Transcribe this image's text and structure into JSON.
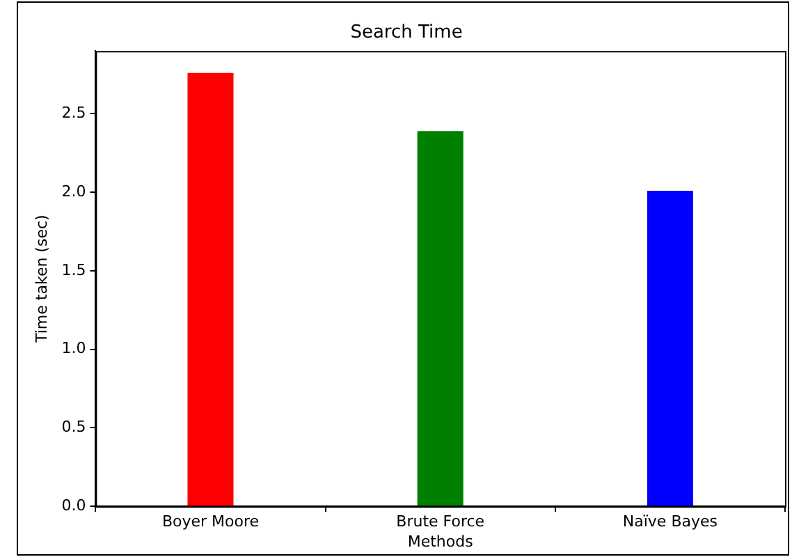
{
  "chart_data": {
    "type": "bar",
    "title": "Search Time",
    "xlabel": "Methods",
    "ylabel": "Time taken (sec)",
    "categories": [
      "Boyer Moore",
      "Brute Force",
      "Naïve Bayes"
    ],
    "values": [
      2.76,
      2.39,
      2.01
    ],
    "colors": [
      "#ff0000",
      "#008000",
      "#0000ff"
    ],
    "ylim": [
      0,
      2.9
    ],
    "yticks": [
      {
        "value": 0,
        "label": "0.0"
      },
      {
        "value": 0.5,
        "label": "0.5"
      },
      {
        "value": 1,
        "label": "1.0"
      },
      {
        "value": 1.5,
        "label": "1.5"
      },
      {
        "value": 2,
        "label": "2.0"
      },
      {
        "value": 2.5,
        "label": "2.5"
      }
    ]
  }
}
